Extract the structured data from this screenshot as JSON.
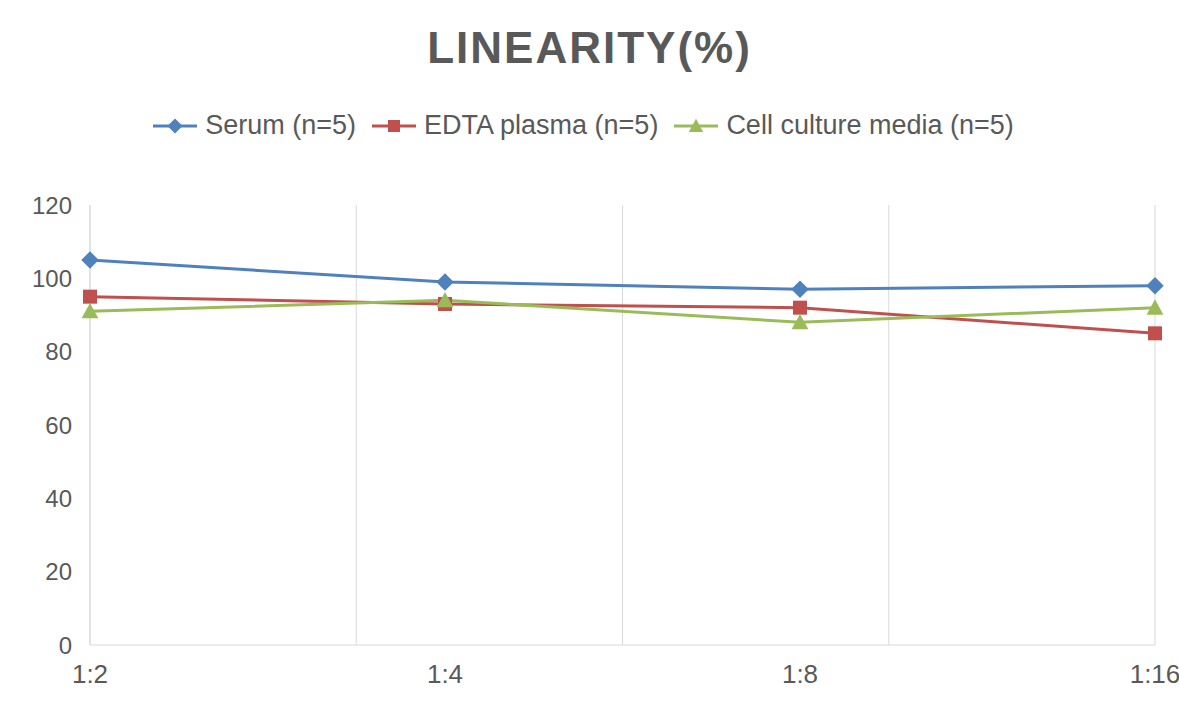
{
  "chart_data": {
    "type": "line",
    "title": "LINEARITY(%)",
    "categories": [
      "1:2",
      "1:4",
      "1:8",
      "1:16"
    ],
    "series": [
      {
        "name": "Serum (n=5)",
        "color": "#4f81bd",
        "marker": "diamond",
        "values": [
          105,
          99,
          97,
          98
        ]
      },
      {
        "name": "EDTA plasma (n=5)",
        "color": "#c0504d",
        "marker": "square",
        "values": [
          95,
          93,
          92,
          85
        ]
      },
      {
        "name": "Cell culture media (n=5)",
        "color": "#9bbb59",
        "marker": "triangle",
        "values": [
          91,
          94,
          88,
          92
        ]
      }
    ],
    "ylim": [
      0,
      120
    ],
    "yticks": [
      0,
      20,
      40,
      60,
      80,
      100,
      120
    ],
    "grid": true,
    "legend": "top"
  }
}
